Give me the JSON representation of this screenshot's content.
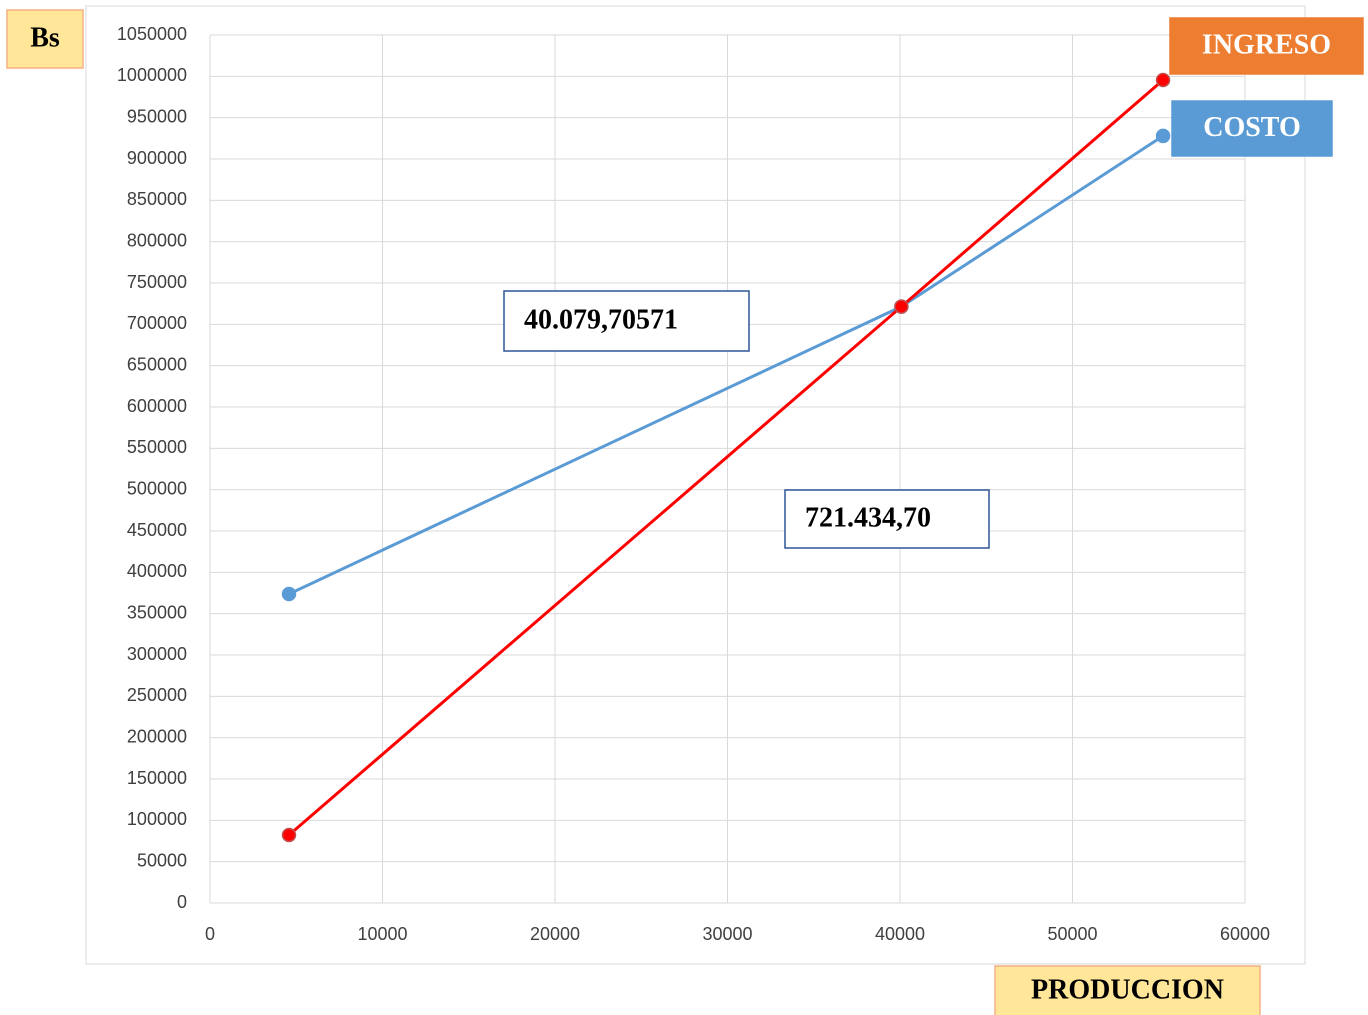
{
  "chart_data": {
    "type": "line",
    "y_label": "Bs",
    "x_label": "PRODUCCION",
    "x": [
      4580,
      40080,
      55250
    ],
    "series": [
      {
        "name": "COSTO",
        "color": "#5b9bd5",
        "values": [
          373800,
          721435,
          927900
        ]
      },
      {
        "name": "INGRESO",
        "color": "#ff0000",
        "values": [
          82300,
          721435,
          995600
        ]
      }
    ],
    "annotations": [
      "40.079,70571",
      "721.434,70"
    ],
    "xlim": [
      0,
      60000
    ],
    "xticks": [
      0,
      10000,
      20000,
      30000,
      40000,
      50000,
      60000
    ],
    "ylim": [
      0,
      1050000
    ],
    "yticks": [
      0,
      50000,
      100000,
      150000,
      200000,
      250000,
      300000,
      350000,
      400000,
      450000,
      500000,
      550000,
      600000,
      650000,
      700000,
      750000,
      800000,
      850000,
      900000,
      950000,
      1000000,
      1050000
    ],
    "grid": true
  }
}
